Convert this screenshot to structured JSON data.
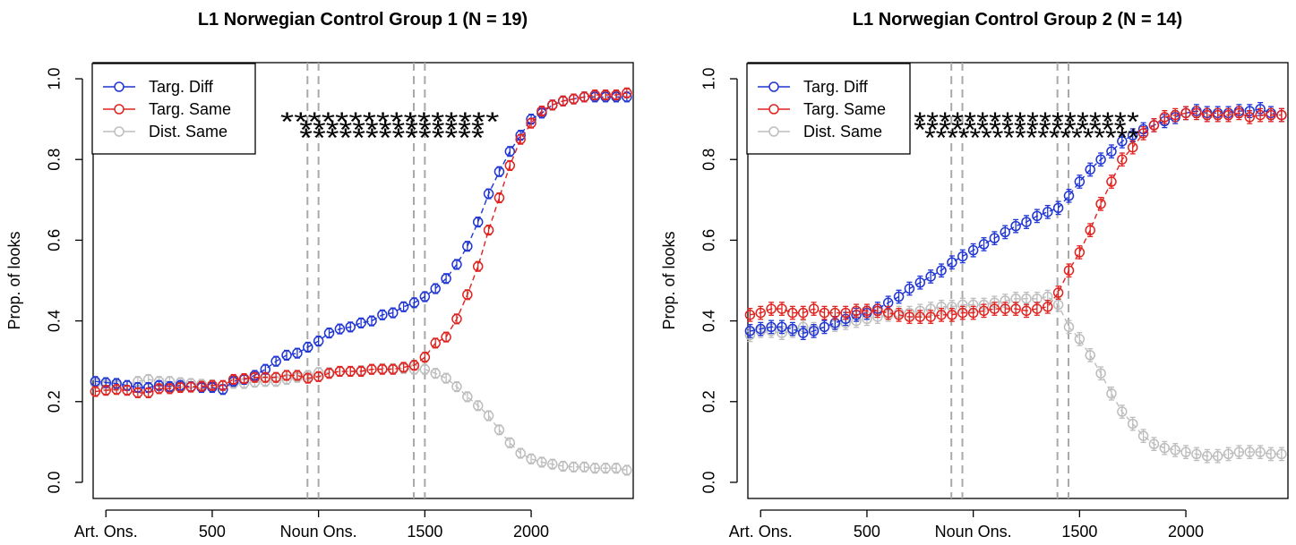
{
  "chart_data": [
    {
      "type": "line",
      "title": "L1 Norwegian Control Group 1 (N = 19)",
      "ylabel": "Prop. of looks",
      "xlabel": "",
      "xlim": [
        -60,
        2480
      ],
      "ylim": [
        -0.04,
        1.04
      ],
      "x_ticks": [
        {
          "value": 0,
          "label": "Art. Ons."
        },
        {
          "value": 500,
          "label": "500"
        },
        {
          "value": 1000,
          "label": "Noun Ons."
        },
        {
          "value": 1500,
          "label": "1500"
        },
        {
          "value": 2000,
          "label": "2000"
        }
      ],
      "y_ticks": [
        {
          "value": 0.0,
          "label": "0.0"
        },
        {
          "value": 0.2,
          "label": "0.2"
        },
        {
          "value": 0.4,
          "label": "0.4"
        },
        {
          "value": 0.6,
          "label": "0.6"
        },
        {
          "value": 0.8,
          "label": "0.8"
        },
        {
          "value": 1.0,
          "label": "1.0"
        }
      ],
      "vlines": [
        948,
        1000,
        1448,
        1500
      ],
      "grid": false,
      "legend_position": "top-left",
      "legend": [
        "Targ. Diff",
        "Targ. Same",
        "Dist. Same"
      ],
      "significance_markers": [
        {
          "text": "****************",
          "x_start": 820,
          "x_end": 1850,
          "y": 0.9
        },
        {
          "text": "**************",
          "x_start": 910,
          "x_end": 1780,
          "y": 0.88
        },
        {
          "text": "**************",
          "x_start": 910,
          "x_end": 1780,
          "y": 0.86
        }
      ],
      "x": [
        -50,
        0,
        50,
        100,
        150,
        200,
        250,
        300,
        350,
        400,
        450,
        500,
        550,
        600,
        650,
        700,
        750,
        800,
        850,
        900,
        950,
        1000,
        1050,
        1100,
        1150,
        1200,
        1250,
        1300,
        1350,
        1400,
        1450,
        1500,
        1550,
        1600,
        1650,
        1700,
        1750,
        1800,
        1850,
        1900,
        1950,
        2000,
        2050,
        2100,
        2150,
        2200,
        2250,
        2300,
        2350,
        2400,
        2450
      ],
      "series": [
        {
          "name": "Targ. Diff",
          "color": "#1f35d4",
          "error": 0.012,
          "values": [
            0.25,
            0.247,
            0.245,
            0.24,
            0.235,
            0.235,
            0.24,
            0.237,
            0.24,
            0.237,
            0.235,
            0.235,
            0.23,
            0.25,
            0.255,
            0.265,
            0.28,
            0.3,
            0.315,
            0.32,
            0.335,
            0.35,
            0.37,
            0.38,
            0.385,
            0.395,
            0.4,
            0.415,
            0.42,
            0.435,
            0.445,
            0.46,
            0.48,
            0.505,
            0.54,
            0.585,
            0.645,
            0.715,
            0.77,
            0.82,
            0.86,
            0.9,
            0.915,
            0.935,
            0.945,
            0.95,
            0.955,
            0.955,
            0.955,
            0.955,
            0.955
          ]
        },
        {
          "name": "Targ. Same",
          "color": "#e0231f",
          "error": 0.012,
          "values": [
            0.225,
            0.228,
            0.23,
            0.228,
            0.222,
            0.222,
            0.232,
            0.232,
            0.235,
            0.236,
            0.238,
            0.24,
            0.24,
            0.255,
            0.257,
            0.26,
            0.26,
            0.26,
            0.265,
            0.265,
            0.258,
            0.262,
            0.27,
            0.275,
            0.275,
            0.275,
            0.28,
            0.28,
            0.28,
            0.285,
            0.29,
            0.31,
            0.345,
            0.36,
            0.405,
            0.465,
            0.535,
            0.625,
            0.705,
            0.785,
            0.85,
            0.89,
            0.92,
            0.935,
            0.945,
            0.95,
            0.955,
            0.96,
            0.96,
            0.96,
            0.965
          ]
        },
        {
          "name": "Dist. Same",
          "color": "#bdbdbd",
          "error": 0.012,
          "values": [
            0.245,
            0.24,
            0.24,
            0.24,
            0.25,
            0.255,
            0.25,
            0.25,
            0.247,
            0.245,
            0.243,
            0.242,
            0.24,
            0.245,
            0.245,
            0.248,
            0.25,
            0.25,
            0.255,
            0.26,
            0.265,
            0.272,
            0.272,
            0.275,
            0.275,
            0.277,
            0.28,
            0.282,
            0.282,
            0.282,
            0.28,
            0.28,
            0.27,
            0.258,
            0.237,
            0.212,
            0.19,
            0.165,
            0.13,
            0.098,
            0.072,
            0.058,
            0.05,
            0.045,
            0.04,
            0.038,
            0.038,
            0.035,
            0.035,
            0.035,
            0.03
          ]
        }
      ]
    },
    {
      "type": "line",
      "title": "L1 Norwegian Control Group 2 (N = 14)",
      "ylabel": "Prop. of looks",
      "xlabel": "",
      "xlim": [
        -60,
        2480
      ],
      "ylim": [
        -0.04,
        1.04
      ],
      "x_ticks": [
        {
          "value": 0,
          "label": "Art. Ons."
        },
        {
          "value": 500,
          "label": "500"
        },
        {
          "value": 1000,
          "label": "Noun Ons."
        },
        {
          "value": 1500,
          "label": "1500"
        },
        {
          "value": 2000,
          "label": "2000"
        }
      ],
      "y_ticks": [
        {
          "value": 0.0,
          "label": "0.0"
        },
        {
          "value": 0.2,
          "label": "0.2"
        },
        {
          "value": 0.4,
          "label": "0.4"
        },
        {
          "value": 0.6,
          "label": "0.6"
        },
        {
          "value": 0.8,
          "label": "0.8"
        },
        {
          "value": 1.0,
          "label": "1.0"
        }
      ],
      "vlines": [
        897,
        949,
        1396,
        1448
      ],
      "grid": false,
      "legend_position": "top-left",
      "legend": [
        "Targ. Diff",
        "Targ. Same",
        "Dist. Same"
      ],
      "significance_markers": [
        {
          "text": "******************",
          "x_start": 720,
          "x_end": 1780,
          "y": 0.9
        },
        {
          "text": "*****************",
          "x_start": 720,
          "x_end": 1720,
          "y": 0.88
        },
        {
          "text": "*******************",
          "x_start": 770,
          "x_end": 1780,
          "y": 0.86
        }
      ],
      "x": [
        -50,
        0,
        50,
        100,
        150,
        200,
        250,
        300,
        350,
        400,
        450,
        500,
        550,
        600,
        650,
        700,
        750,
        800,
        850,
        900,
        950,
        1000,
        1050,
        1100,
        1150,
        1200,
        1250,
        1300,
        1350,
        1400,
        1450,
        1500,
        1550,
        1600,
        1650,
        1700,
        1750,
        1800,
        1850,
        1900,
        1950,
        2000,
        2050,
        2100,
        2150,
        2200,
        2250,
        2300,
        2350,
        2400,
        2450
      ],
      "series": [
        {
          "name": "Targ. Diff",
          "color": "#1f35d4",
          "error": 0.016,
          "values": [
            0.375,
            0.38,
            0.385,
            0.385,
            0.38,
            0.37,
            0.375,
            0.385,
            0.395,
            0.405,
            0.415,
            0.42,
            0.43,
            0.445,
            0.46,
            0.48,
            0.495,
            0.51,
            0.525,
            0.545,
            0.56,
            0.575,
            0.59,
            0.605,
            0.62,
            0.635,
            0.645,
            0.66,
            0.67,
            0.68,
            0.71,
            0.745,
            0.775,
            0.8,
            0.82,
            0.845,
            0.86,
            0.875,
            0.885,
            0.895,
            0.905,
            0.915,
            0.92,
            0.915,
            0.915,
            0.915,
            0.92,
            0.92,
            0.925,
            0.915,
            0.91
          ]
        },
        {
          "name": "Targ. Same",
          "color": "#e0231f",
          "error": 0.016,
          "values": [
            0.415,
            0.42,
            0.43,
            0.43,
            0.42,
            0.42,
            0.43,
            0.42,
            0.42,
            0.42,
            0.425,
            0.425,
            0.425,
            0.42,
            0.415,
            0.41,
            0.41,
            0.41,
            0.415,
            0.415,
            0.42,
            0.42,
            0.425,
            0.43,
            0.43,
            0.43,
            0.425,
            0.43,
            0.435,
            0.47,
            0.525,
            0.57,
            0.625,
            0.69,
            0.745,
            0.8,
            0.83,
            0.865,
            0.885,
            0.905,
            0.91,
            0.915,
            0.915,
            0.91,
            0.91,
            0.91,
            0.915,
            0.905,
            0.91,
            0.91,
            0.91
          ]
        },
        {
          "name": "Dist. Same",
          "color": "#bdbdbd",
          "error": 0.016,
          "values": [
            0.365,
            0.375,
            0.375,
            0.37,
            0.375,
            0.385,
            0.38,
            0.385,
            0.39,
            0.395,
            0.4,
            0.405,
            0.41,
            0.415,
            0.42,
            0.42,
            0.425,
            0.43,
            0.435,
            0.435,
            0.44,
            0.44,
            0.44,
            0.445,
            0.45,
            0.455,
            0.455,
            0.455,
            0.46,
            0.44,
            0.385,
            0.355,
            0.315,
            0.27,
            0.22,
            0.175,
            0.145,
            0.115,
            0.095,
            0.085,
            0.08,
            0.075,
            0.07,
            0.065,
            0.065,
            0.07,
            0.075,
            0.075,
            0.075,
            0.07,
            0.07
          ]
        }
      ]
    }
  ]
}
